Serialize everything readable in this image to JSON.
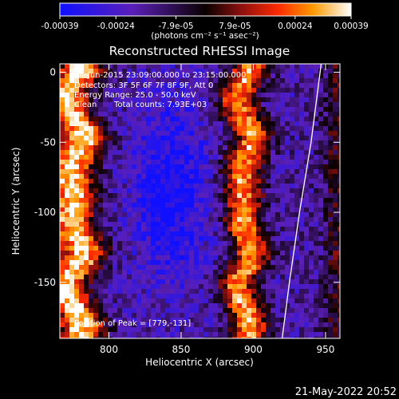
{
  "chart_data": {
    "type": "heatmap",
    "title": "Reconstructed RHESSI Image",
    "xlabel": "Heliocentric X (arcsec)",
    "ylabel": "Heliocentric Y (arcsec)",
    "xlim": [
      766,
      960
    ],
    "ylim": [
      -190,
      6
    ],
    "x_ticks": [
      800,
      850,
      900,
      950
    ],
    "y_ticks": [
      0,
      -50,
      -100,
      -150
    ],
    "colorbar": {
      "ticks": [
        "-0.00039",
        "-0.00024",
        "-7.9e-05",
        "7.9e-05",
        "0.00024",
        "0.00039"
      ],
      "tick_values": [
        -0.00039,
        -0.00024,
        -7.9e-05,
        7.9e-05,
        0.00024,
        0.00039
      ],
      "range": [
        -0.00039,
        0.00039
      ],
      "unit_label": "(photons cm⁻² s⁻¹ asec⁻²)"
    },
    "annotations": {
      "time": "14-Jun-2015 23:09:00.000 to 23:15:00.000",
      "detectors": "Detectors: 3F 5F 6F 7F 8F 9F, Att 0",
      "energy": "Energy Range: 25.0 - 50.0 keV",
      "method": "Clean",
      "counts": "Total counts: 7.93E+03",
      "peak": "Position of Peak = [779,-131]"
    },
    "limb_curve_points": [
      [
        947,
        6
      ],
      [
        940,
        -50
      ],
      [
        932,
        -100
      ],
      [
        925,
        -150
      ],
      [
        920,
        -190
      ]
    ],
    "intensity_model": {
      "bright_left_band_center_x": 776,
      "bright_right_band_center_x": 894,
      "dark_center": [
        843,
        -85
      ]
    }
  },
  "footer": {
    "timestamp": "21-May-2022 20:52"
  }
}
